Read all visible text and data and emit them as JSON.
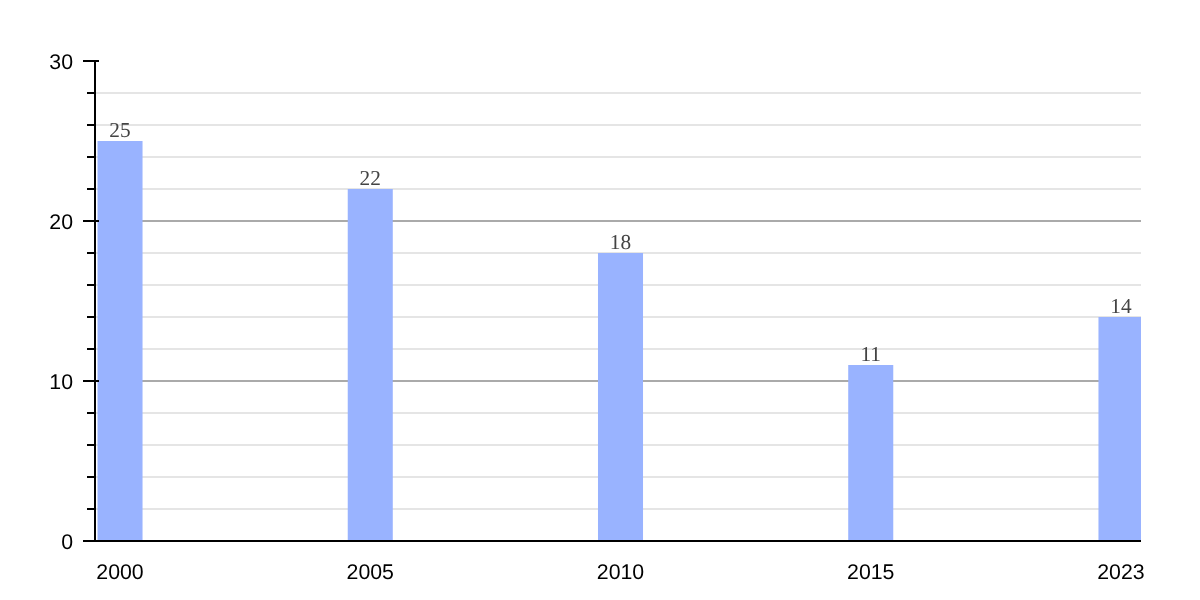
{
  "chart_data": {
    "type": "bar",
    "categories": [
      "2000",
      "2005",
      "2010",
      "2015",
      "2023"
    ],
    "values": [
      25,
      22,
      18,
      11,
      14
    ],
    "color": "#99b3ff",
    "ylim": [
      0,
      30
    ],
    "yticks": [
      0,
      10,
      20,
      30
    ],
    "grid": "y",
    "data_labels": true
  }
}
